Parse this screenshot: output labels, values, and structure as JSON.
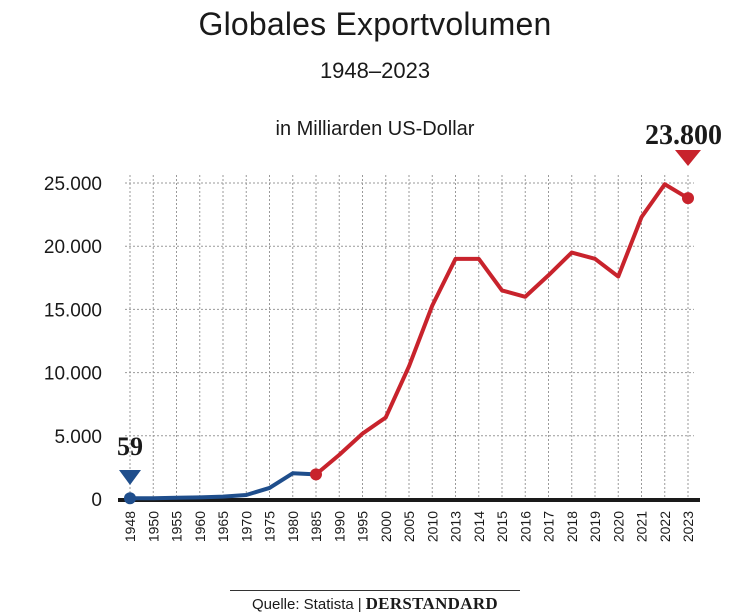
{
  "title": "Globales Exportvolumen",
  "subtitle": "1948–2023",
  "unit_label": "in Milliarden US-Dollar",
  "source_label": "Quelle: Statista",
  "source_separator": "|",
  "brand": "DERSTANDARD",
  "colors": {
    "early": "#1f4e8c",
    "late": "#c8232c",
    "grid": "#9a9a9a",
    "axis": "#1a1a1a"
  },
  "chart_data": {
    "type": "line",
    "title": "Globales Exportvolumen",
    "subtitle": "1948–2023",
    "ylabel": "in Milliarden US-Dollar",
    "ylim": [
      0,
      25000
    ],
    "yticks": [
      0,
      5000,
      10000,
      15000,
      20000,
      25000
    ],
    "ytick_labels": [
      "0",
      "5.000",
      "10.000",
      "15.000",
      "20.000",
      "25.000"
    ],
    "categories": [
      "1948",
      "1950",
      "1955",
      "1960",
      "1965",
      "1970",
      "1975",
      "1980",
      "1985",
      "1990",
      "1995",
      "2000",
      "2005",
      "2010",
      "2013",
      "2014",
      "2015",
      "2016",
      "2017",
      "2018",
      "2019",
      "2020",
      "2021",
      "2022",
      "2023"
    ],
    "series": [
      {
        "values": [
          59,
          62,
          94,
          130,
          190,
          317,
          877,
          2034,
          1950,
          null,
          null,
          null,
          null,
          null,
          null,
          null,
          null,
          null,
          null,
          null,
          null,
          null,
          null,
          null,
          null
        ]
      },
      {
        "values": [
          null,
          null,
          null,
          null,
          null,
          null,
          null,
          null,
          1950,
          3490,
          5170,
          6450,
          10500,
          15300,
          19000,
          19000,
          16500,
          16000,
          17700,
          19500,
          19000,
          17600,
          22300,
          24900,
          23800
        ]
      }
    ],
    "annotations": [
      {
        "label": "59",
        "category": "1948",
        "value": 59
      },
      {
        "label": "23.800",
        "category": "2023",
        "value": 23800
      }
    ],
    "grid": true
  }
}
